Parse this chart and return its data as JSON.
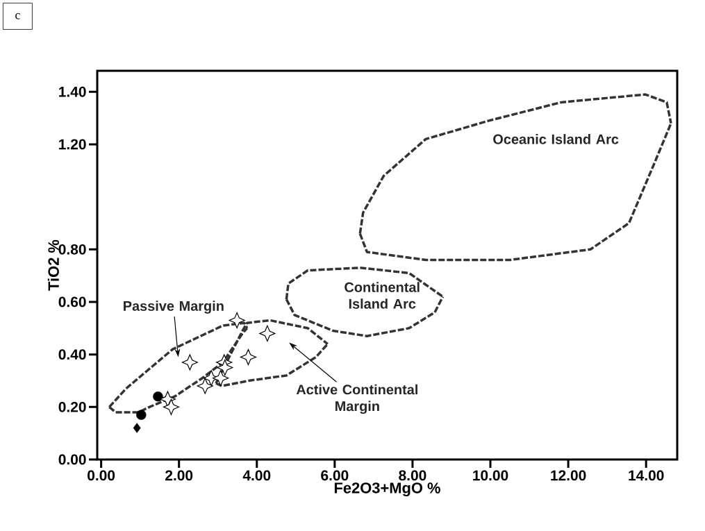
{
  "chart_data": {
    "type": "scatter",
    "title": "c",
    "xlabel": "Fe2O3+MgO %",
    "ylabel": "TiO2 %",
    "xlim": [
      -0.1,
      14.8
    ],
    "ylim": [
      0,
      1.48
    ],
    "xticks": [
      {
        "value": 0,
        "label": "0.00"
      },
      {
        "value": 2,
        "label": "2.00"
      },
      {
        "value": 4,
        "label": "4.00"
      },
      {
        "value": 6,
        "label": "6.00"
      },
      {
        "value": 8,
        "label": "8.00"
      },
      {
        "value": 10,
        "label": "10.00"
      },
      {
        "value": 12,
        "label": "12.00"
      },
      {
        "value": 14,
        "label": "14.00"
      }
    ],
    "yticks": [
      {
        "value": 0,
        "label": "0.00"
      },
      {
        "value": 0.2,
        "label": "0.20"
      },
      {
        "value": 0.4,
        "label": "0.40"
      },
      {
        "value": 0.6,
        "label": "0.60"
      },
      {
        "value": 0.8,
        "label": "0.80"
      },
      {
        "value": 1.2,
        "label": "1.20"
      },
      {
        "value": 1.4,
        "label": "1.40"
      }
    ],
    "grid": false,
    "legend": false,
    "series": [
      {
        "marker": "diamond",
        "color": "#000000",
        "x": [
          0.92
        ],
        "values": [
          0.12
        ]
      },
      {
        "marker": "circle",
        "color": "#000000",
        "x": [
          1.03,
          1.46
        ],
        "values": [
          0.17,
          0.24
        ]
      },
      {
        "marker": "star",
        "color": "#000000",
        "x": [
          1.71,
          1.8,
          2.28,
          3.49,
          4.27,
          3.78,
          3.16,
          3.18,
          2.83,
          3.07,
          2.67
        ],
        "values": [
          0.23,
          0.2,
          0.37,
          0.53,
          0.48,
          0.39,
          0.37,
          0.35,
          0.31,
          0.31,
          0.28
        ]
      },
      {
        "type": "line",
        "marker": "none",
        "line_style": "dashed",
        "color": "#333333",
        "x": [
          0.21,
          0.64,
          1.84,
          3.13,
          3.68,
          3.75
        ],
        "values": [
          0.2,
          0.27,
          0.42,
          0.51,
          0.52,
          0.5
        ]
      },
      {
        "type": "line",
        "marker": "none",
        "line_style": "dashed",
        "color": "#333333",
        "x": [
          0.21,
          0.37,
          0.97,
          1.24,
          1.89,
          2.6,
          3.13,
          3.63,
          3.75
        ],
        "values": [
          0.2,
          0.18,
          0.18,
          0.2,
          0.24,
          0.31,
          0.37,
          0.48,
          0.5
        ]
      },
      {
        "type": "line",
        "marker": "none",
        "line_style": "dashed",
        "color": "#333333",
        "x": [
          2.95,
          3.63,
          3.75,
          4.34,
          5.31,
          5.82
        ],
        "values": [
          0.29,
          0.49,
          0.52,
          0.53,
          0.5,
          0.44
        ]
      },
      {
        "type": "line",
        "marker": "none",
        "line_style": "dashed",
        "color": "#333333",
        "x": [
          2.95,
          3.1,
          3.79,
          4.76,
          5.52,
          5.82
        ],
        "values": [
          0.29,
          0.28,
          0.3,
          0.32,
          0.39,
          0.44
        ]
      },
      {
        "type": "line",
        "marker": "none",
        "line_style": "dashed",
        "color": "#333333",
        "x": [
          4.76,
          4.81,
          5.31,
          6.65,
          7.91,
          8.78
        ],
        "values": [
          0.61,
          0.67,
          0.72,
          0.73,
          0.71,
          0.62
        ]
      },
      {
        "type": "line",
        "marker": "none",
        "line_style": "dashed",
        "color": "#333333",
        "x": [
          4.76,
          4.97,
          5.96,
          6.83,
          7.91,
          8.57,
          8.78
        ],
        "values": [
          0.61,
          0.55,
          0.49,
          0.47,
          0.5,
          0.56,
          0.62
        ]
      },
      {
        "type": "line",
        "marker": "none",
        "line_style": "dashed",
        "color": "#333333",
        "x": [
          6.65,
          6.73,
          7.26,
          8.34,
          9.96,
          11.82,
          13.98,
          14.53,
          14.64
        ],
        "values": [
          0.86,
          0.94,
          1.08,
          1.22,
          1.29,
          1.36,
          1.39,
          1.36,
          1.28
        ]
      },
      {
        "type": "line",
        "marker": "none",
        "line_style": "dashed",
        "color": "#333333",
        "x": [
          6.65,
          6.83,
          8.34,
          10.51,
          12.57,
          13.56,
          14.19,
          14.64
        ],
        "values": [
          0.86,
          0.79,
          0.76,
          0.76,
          0.8,
          0.9,
          1.12,
          1.28
        ]
      }
    ],
    "annotations": [
      "Passive Margin",
      "Active Continental Margin",
      "Continental Island Arc",
      "Oceanic Island Arc"
    ]
  }
}
